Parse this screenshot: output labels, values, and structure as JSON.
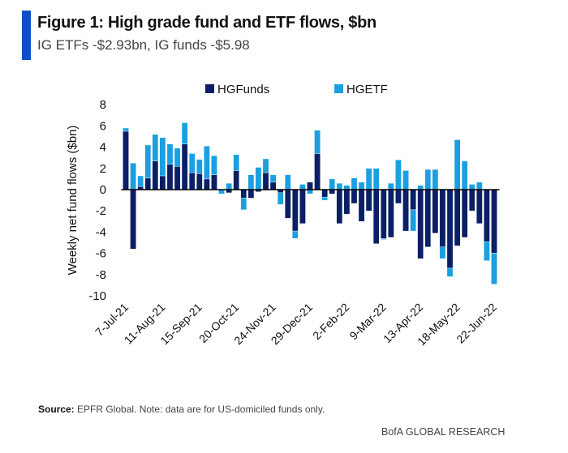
{
  "header": {
    "title": "Figure 1: High grade fund and ETF flows, $bn",
    "subtitle": "IG ETFs -$2.93bn, IG funds -$5.98"
  },
  "footer": {
    "source_label": "Source:",
    "source_text": " EPFR Global. Note: data are for US-domiciled funds only.",
    "brand": "BofA GLOBAL RESEARCH"
  },
  "chart_data": {
    "type": "bar",
    "stacked": true,
    "title": "Figure 1: High grade fund and ETF flows, $bn",
    "ylabel": "Weekly  net fund  flows  ($bn)",
    "ylim": [
      -10,
      8
    ],
    "yticks": [
      8,
      6,
      4,
      2,
      0,
      -2,
      -4,
      -6,
      -8,
      -10
    ],
    "xtick_labels": [
      "7-Jul-21",
      "11-Aug-21",
      "15-Sep-21",
      "20-Oct-21",
      "24-Nov-21",
      "29-Dec-21",
      "2-Feb-22",
      "9-Mar-22",
      "13-Apr-22",
      "18-May-22",
      "22-Jun-22"
    ],
    "x_start": "7-Jul-21",
    "x_end": "22-Jun-22",
    "frequency": "weekly",
    "legend_position": "top",
    "grid": false,
    "series": [
      {
        "name": "HGFunds",
        "color": "#0a1f64",
        "values": [
          5.5,
          -5.6,
          0.3,
          1.1,
          2.7,
          1.3,
          2.4,
          2.2,
          4.3,
          1.6,
          1.5,
          1.0,
          1.4,
          0,
          -0.3,
          1.8,
          -0.8,
          -0.8,
          -0.2,
          1.6,
          0.7,
          -0.3,
          -2.7,
          -3.9,
          -3.2,
          0.7,
          3.4,
          -0.7,
          -0.4,
          -3.2,
          -2.3,
          -1.3,
          -3.0,
          -2.0,
          -5.1,
          -4.6,
          -4.5,
          -1.3,
          -3.9,
          -1.9,
          -6.5,
          -5.4,
          -4.1,
          -5.4,
          -7.4,
          -5.3,
          -4.5,
          -2.0,
          -3.2,
          -4.9,
          -5.98
        ]
      },
      {
        "name": "HGETF",
        "color": "#1aa0e0",
        "values": [
          0.3,
          2.5,
          1.0,
          3.1,
          2.5,
          3.6,
          1.9,
          1.7,
          2.0,
          1.8,
          1.35,
          3.1,
          1.8,
          -0.4,
          0.6,
          1.5,
          -1.1,
          1.4,
          2.1,
          1.3,
          0.7,
          -1.1,
          1.4,
          -0.7,
          0.5,
          -0.4,
          2.2,
          -0.3,
          1.0,
          0.6,
          0.4,
          1.1,
          0.7,
          2.0,
          2.0,
          -0.1,
          0.6,
          2.8,
          1.8,
          -2.0,
          0.4,
          1.9,
          1.9,
          -1.1,
          -0.8,
          4.7,
          2.7,
          0.5,
          0.7,
          -1.8,
          -2.93
        ]
      }
    ]
  }
}
